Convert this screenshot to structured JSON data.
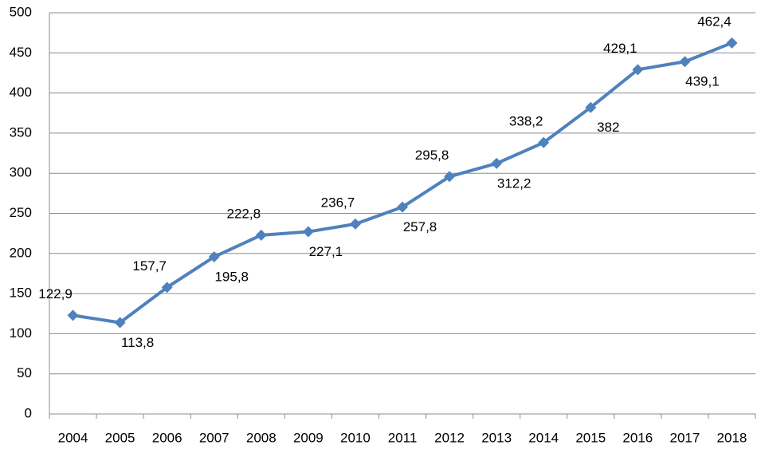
{
  "chart_data": {
    "type": "line",
    "categories": [
      "2004",
      "2005",
      "2006",
      "2007",
      "2008",
      "2009",
      "2010",
      "2011",
      "2012",
      "2013",
      "2014",
      "2015",
      "2016",
      "2017",
      "2018"
    ],
    "series": [
      {
        "name": "Series 1",
        "color": "#4f81bd",
        "values": [
          122.9,
          113.8,
          157.7,
          195.8,
          222.8,
          227.1,
          236.7,
          257.8,
          295.8,
          312.2,
          338.2,
          382,
          429.1,
          439.1,
          462.4
        ],
        "value_labels": [
          "122,9",
          "113,8",
          "157,7",
          "195,8",
          "222,8",
          "227,1",
          "236,7",
          "257,8",
          "295,8",
          "312,2",
          "338,2",
          "382",
          "429,1",
          "439,1",
          "462,4"
        ]
      }
    ],
    "ylim": [
      0,
      500
    ],
    "yticks": [
      0,
      50,
      100,
      150,
      200,
      250,
      300,
      350,
      400,
      450,
      500
    ],
    "grid": true
  }
}
